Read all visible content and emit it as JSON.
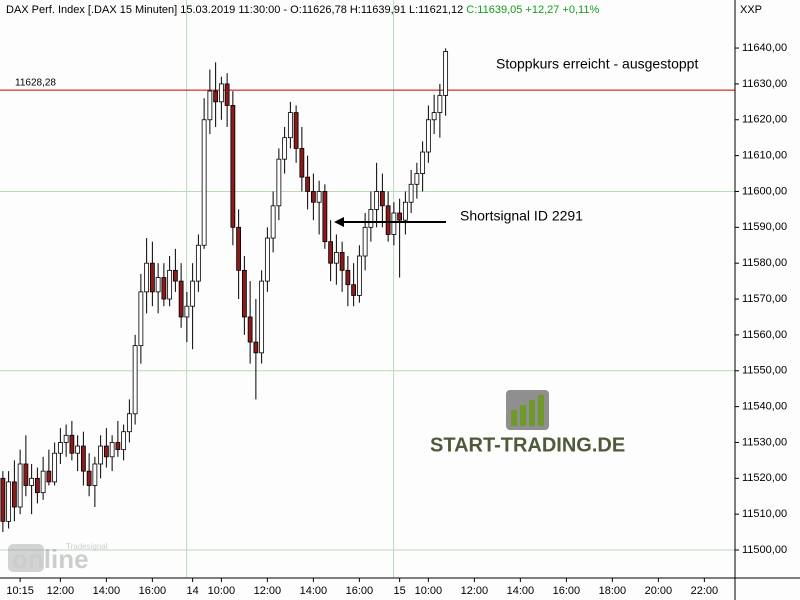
{
  "chart_data": {
    "type": "candlestick",
    "title": "DAX Perf. Index [.DAX  15 Minuten] 15.03.2019 11:30:00 - O:11626,78 H:11639,91 L:11621,12",
    "change_text": "C:11639,05 +12,27 +0,11%",
    "change_color": "#1a9a1a",
    "axis_code": "XXP",
    "up_color": "#ffffff",
    "down_color": "#8b1a1a",
    "grid_color": "#b9d9b9",
    "categories": [
      null,
      null,
      null,
      "10:15",
      null,
      null,
      null,
      null,
      null,
      null,
      "12:00",
      null,
      null,
      null,
      null,
      null,
      null,
      null,
      "14:00",
      null,
      null,
      null,
      null,
      null,
      null,
      null,
      "16:00",
      null,
      null,
      null,
      null,
      null,
      null,
      "14",
      null,
      null,
      null,
      null,
      "10:00",
      null,
      null,
      null,
      null,
      null,
      null,
      null,
      "12:00",
      null,
      null,
      null,
      null,
      null,
      null,
      null,
      "14:00",
      null,
      null,
      null,
      null,
      null,
      null,
      null,
      "16:00",
      null,
      null,
      null,
      null,
      null,
      null,
      "15",
      null,
      null,
      null,
      null,
      "10:00",
      null,
      null,
      null,
      null,
      null,
      null,
      null,
      "12:00",
      null,
      null,
      null,
      null,
      null,
      null,
      null,
      "14:00",
      null,
      null,
      null,
      null,
      null,
      null,
      null,
      "16:00",
      null,
      null,
      null,
      null,
      null,
      null,
      null,
      "18:00",
      null,
      null,
      null,
      null,
      null,
      null,
      null,
      "20:00",
      null,
      null,
      null,
      null,
      null,
      null,
      null,
      "22:00",
      null,
      null,
      null,
      null,
      null
    ],
    "day_labels": [
      "14",
      "15"
    ],
    "open": [
      11520,
      11508,
      11519,
      11512,
      11524,
      11518,
      11520,
      11516,
      11522,
      11519,
      11527,
      11530,
      11532,
      11527,
      11529,
      11522,
      11518,
      11524,
      11529,
      11526,
      11530,
      11528,
      11533,
      11538,
      11557,
      11572,
      11580,
      11572,
      11576,
      11570,
      11578,
      11575,
      11565,
      11568,
      11575,
      11585,
      11620,
      11628,
      11625,
      11630,
      11624,
      11590,
      11578,
      11565,
      11558,
      11555,
      11575,
      11587,
      11596,
      11609,
      11615,
      11622,
      11612,
      11604,
      11600,
      11597,
      11600,
      11586,
      11580,
      11583,
      11578,
      11574,
      11571,
      11582,
      11590,
      11595,
      11600,
      11596,
      11588,
      11594,
      11592,
      11597,
      11602,
      11605,
      11611,
      11620,
      11622,
      11626.78,
      null,
      null,
      null,
      null,
      null,
      null,
      null,
      null,
      null,
      null,
      null,
      null,
      null,
      null,
      null,
      null,
      null,
      null,
      null,
      null,
      null,
      null,
      null,
      null,
      null,
      null,
      null,
      null,
      null,
      null,
      null,
      null,
      null,
      null,
      null,
      null,
      null,
      null,
      null,
      null,
      null,
      null,
      null,
      null,
      null,
      null,
      null,
      null,
      null,
      null
    ],
    "high": [
      11522,
      11522,
      11525,
      11528,
      11532,
      11524,
      11523,
      11526,
      11528,
      11530,
      11534,
      11535,
      11536,
      11532,
      11533,
      11527,
      11526,
      11532,
      11534,
      11532,
      11536,
      11535,
      11542,
      11560,
      11577,
      11587,
      11586,
      11580,
      11580,
      11582,
      11584,
      11580,
      11572,
      11580,
      11588,
      11626,
      11634,
      11636,
      11632,
      11633,
      11628,
      11595,
      11582,
      11575,
      11570,
      11578,
      11590,
      11600,
      11612,
      11618,
      11625,
      11624,
      11618,
      11610,
      11605,
      11603,
      11602,
      11592,
      11588,
      11586,
      11582,
      11580,
      11585,
      11594,
      11600,
      11608,
      11605,
      11600,
      11597,
      11598,
      11600,
      11606,
      11608,
      11614,
      11624,
      11627,
      11630,
      11639.91,
      null,
      null,
      null,
      null,
      null,
      null,
      null,
      null,
      null,
      null,
      null,
      null,
      null,
      null,
      null,
      null,
      null,
      null,
      null,
      null,
      null,
      null,
      null,
      null,
      null,
      null,
      null,
      null,
      null,
      null,
      null,
      null,
      null,
      null,
      null,
      null,
      null,
      null,
      null,
      null,
      null,
      null,
      null,
      null,
      null,
      null,
      null,
      null,
      null,
      null
    ],
    "low": [
      11505,
      11506,
      11508,
      11510,
      11515,
      11510,
      11513,
      11514,
      11518,
      11518,
      11524,
      11526,
      11525,
      11522,
      11518,
      11515,
      11512,
      11520,
      11523,
      11522,
      11526,
      11525,
      11530,
      11535,
      11552,
      11566,
      11568,
      11566,
      11568,
      11568,
      11572,
      11562,
      11558,
      11556,
      11572,
      11584,
      11616,
      11618,
      11620,
      11618,
      11585,
      11570,
      11560,
      11552,
      11542,
      11552,
      11572,
      11583,
      11592,
      11605,
      11612,
      11608,
      11600,
      11595,
      11592,
      11588,
      11584,
      11575,
      11574,
      11572,
      11568,
      11568,
      11569,
      11578,
      11586,
      11590,
      11590,
      11586,
      11585,
      11576,
      11588,
      11594,
      11598,
      11600,
      11608,
      11616,
      11615,
      11621.12,
      null,
      null,
      null,
      null,
      null,
      null,
      null,
      null,
      null,
      null,
      null,
      null,
      null,
      null,
      null,
      null,
      null,
      null,
      null,
      null,
      null,
      null,
      null,
      null,
      null,
      null,
      null,
      null,
      null,
      null,
      null,
      null,
      null,
      null,
      null,
      null,
      null,
      null,
      null,
      null,
      null,
      null,
      null,
      null,
      null,
      null,
      null,
      null,
      null,
      null
    ],
    "close": [
      11508,
      11519,
      11512,
      11524,
      11518,
      11520,
      11516,
      11522,
      11519,
      11527,
      11530,
      11532,
      11527,
      11529,
      11522,
      11518,
      11524,
      11529,
      11526,
      11530,
      11528,
      11533,
      11538,
      11557,
      11572,
      11580,
      11572,
      11576,
      11570,
      11578,
      11575,
      11565,
      11568,
      11575,
      11585,
      11620,
      11628,
      11625,
      11630,
      11624,
      11590,
      11578,
      11565,
      11558,
      11555,
      11575,
      11587,
      11596,
      11609,
      11615,
      11622,
      11612,
      11604,
      11600,
      11597,
      11600,
      11586,
      11580,
      11583,
      11578,
      11574,
      11571,
      11582,
      11590,
      11595,
      11600,
      11596,
      11588,
      11594,
      11592,
      11597,
      11602,
      11605,
      11611,
      11620,
      11622,
      11626.78,
      11639.05,
      null,
      null,
      null,
      null,
      null,
      null,
      null,
      null,
      null,
      null,
      null,
      null,
      null,
      null,
      null,
      null,
      null,
      null,
      null,
      null,
      null,
      null,
      null,
      null,
      null,
      null,
      null,
      null,
      null,
      null,
      null,
      null,
      null,
      null,
      null,
      null,
      null,
      null,
      null,
      null,
      null,
      null,
      null,
      null,
      null,
      null,
      null,
      null,
      null,
      null
    ],
    "ylim": [
      11492.2,
      11653.4
    ],
    "yticks": [
      {
        "value": 11500,
        "label": "11500,00"
      },
      {
        "value": 11510,
        "label": "11510,00"
      },
      {
        "value": 11520,
        "label": "11520,00"
      },
      {
        "value": 11530,
        "label": "11530,00"
      },
      {
        "value": 11540,
        "label": "11540,00"
      },
      {
        "value": 11550,
        "label": "11550,00"
      },
      {
        "value": 11560,
        "label": "11560,00"
      },
      {
        "value": 11570,
        "label": "11570,00"
      },
      {
        "value": 11580,
        "label": "11580,00"
      },
      {
        "value": 11590,
        "label": "11590,00"
      },
      {
        "value": 11600,
        "label": "11600,00"
      },
      {
        "value": 11610,
        "label": "11610,00"
      },
      {
        "value": 11620,
        "label": "11620,00"
      },
      {
        "value": 11630,
        "label": "11630,00"
      },
      {
        "value": 11640,
        "label": "11640,00"
      }
    ],
    "hline": {
      "value": 11628.28,
      "label": "11628,28",
      "color": "#cc0000"
    },
    "annotations": [
      {
        "text": "Stoppkurs erreicht - ausgestoppt",
        "color": "#1010d0"
      },
      {
        "text": "Shortsignal ID 2291",
        "color": "#1010d0"
      }
    ],
    "logo": {
      "text": "START-TRADING.DE"
    },
    "watermark": {
      "brand": "Tradesignal",
      "word": "online"
    }
  }
}
